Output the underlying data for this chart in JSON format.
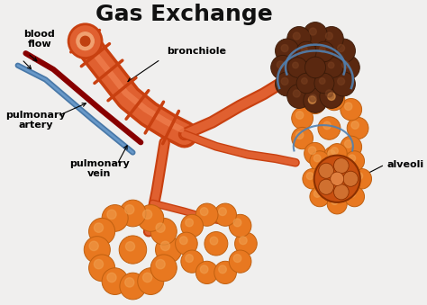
{
  "title": "Gas Exchange",
  "title_fontsize": 18,
  "title_fontweight": "bold",
  "background_color": "#f0efee",
  "labels": {
    "blood_flow": "blood\nflow",
    "bronchiole": "bronchiole",
    "pulmonary_artery": "pulmonary\nartery",
    "pulmonary_vein": "pulmonary\nvein",
    "alveoli": "alveoli"
  },
  "colors": {
    "bronchiole_outer": "#C84010",
    "bronchiole_inner": "#E06030",
    "bronchiole_highlight": "#F08050",
    "bronchiole_rib": "#A03010",
    "alveoli_orange": "#E87820",
    "alveoli_dark_orange": "#C06010",
    "alveoli_highlight": "#F0A050",
    "dark_alveoli_base": "#3A1A08",
    "dark_alveoli_mid": "#5A2810",
    "dark_alveoli_hi": "#7A4020",
    "artery_red": "#AA1010",
    "artery_dark": "#880000",
    "vein_blue": "#4878A8",
    "vein_light": "#6898C8",
    "capillary_blue": "#5080B0",
    "text_color": "#111111",
    "bg": "#f0efee"
  },
  "layout": {
    "xlim": [
      0,
      10
    ],
    "ylim": [
      0,
      7.5
    ]
  }
}
